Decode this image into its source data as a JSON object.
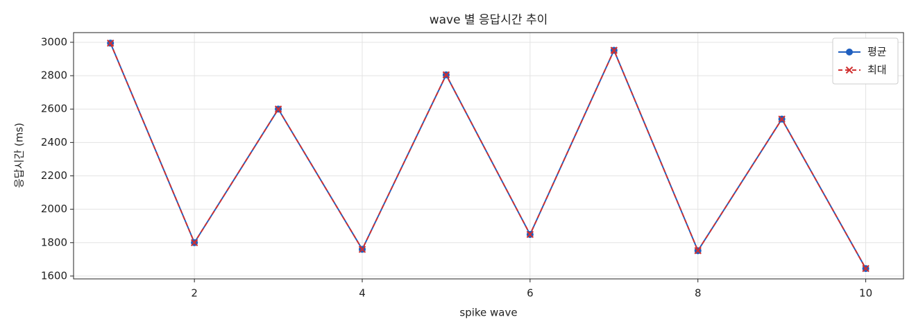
{
  "chart_data": {
    "type": "line",
    "title": "wave 별 응답시간 추이",
    "xlabel": "spike wave",
    "ylabel": "응답시간 (ms)",
    "x": [
      1,
      2,
      3,
      4,
      5,
      6,
      7,
      8,
      9,
      10
    ],
    "series": [
      {
        "name": "평균",
        "color": "#1f5fbf",
        "marker": "o",
        "dash": false,
        "values": [
          2995,
          1800,
          2600,
          1760,
          2805,
          1849,
          2952,
          1752,
          2540,
          1645
        ]
      },
      {
        "name": "최대",
        "color": "#d03030",
        "marker": "x",
        "dash": true,
        "values": [
          2995,
          1800,
          2600,
          1760,
          2805,
          1849,
          2952,
          1752,
          2540,
          1645
        ]
      }
    ],
    "xlim": [
      0.56,
      10.45
    ],
    "xticks": [
      2,
      4,
      6,
      8,
      10
    ],
    "ylim": [
      1583,
      3058
    ],
    "yticks": [
      1600,
      1800,
      2000,
      2200,
      2400,
      2600,
      2800,
      3000
    ],
    "grid": true,
    "legend": "upper right"
  }
}
